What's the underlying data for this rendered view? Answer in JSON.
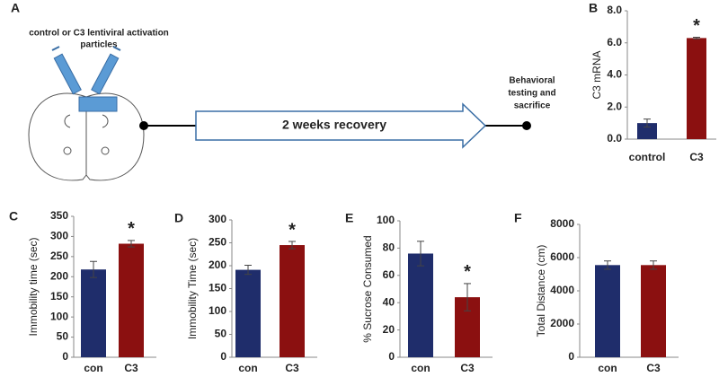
{
  "diagram": {
    "panel": "A",
    "caption": [
      "control  or C3 lentiviral activation",
      "particles"
    ],
    "arrow_label": "2 weeks recovery",
    "endpoint_label": [
      "Behavioral",
      "testing and",
      "sacrifice"
    ]
  },
  "chart_data": [
    {
      "type": "bar",
      "panel": "B",
      "ylabel": "C3 mRNA",
      "categories": [
        "control",
        "C3"
      ],
      "values": [
        1.0,
        6.3
      ],
      "errors": [
        0.25,
        0.05
      ],
      "colors": [
        "#1f2d6b",
        "#8b1010"
      ],
      "annotations": [
        null,
        "*"
      ],
      "ylim": [
        0,
        8
      ],
      "yticks": [
        {
          "value": 0,
          "label": "0.0"
        },
        {
          "value": 2,
          "label": "2.0"
        },
        {
          "value": 4,
          "label": "4.0"
        },
        {
          "value": 6,
          "label": "6.0"
        },
        {
          "value": 8,
          "label": "8.0"
        }
      ]
    },
    {
      "type": "bar",
      "panel": "C",
      "ylabel": "Immobility time (sec)",
      "categories": [
        "con",
        "C3"
      ],
      "values": [
        218,
        282
      ],
      "errors": [
        20,
        8
      ],
      "colors": [
        "#1f2d6b",
        "#8b1010"
      ],
      "annotations": [
        null,
        "*"
      ],
      "ylim": [
        0,
        350
      ],
      "yticks": [
        0,
        50,
        100,
        150,
        200,
        250,
        300,
        350
      ]
    },
    {
      "type": "bar",
      "panel": "D",
      "ylabel": "Immobility Time (sec)",
      "categories": [
        "con",
        "C3"
      ],
      "values": [
        191,
        245
      ],
      "errors": [
        10,
        8
      ],
      "colors": [
        "#1f2d6b",
        "#8b1010"
      ],
      "annotations": [
        null,
        "*"
      ],
      "ylim": [
        0,
        300
      ],
      "yticks": [
        0,
        50,
        100,
        150,
        200,
        250,
        300
      ]
    },
    {
      "type": "bar",
      "panel": "E",
      "ylabel": "% Sucrose Consumed",
      "categories": [
        "con",
        "C3"
      ],
      "values": [
        76,
        44
      ],
      "errors": [
        9,
        10
      ],
      "colors": [
        "#1f2d6b",
        "#8b1010"
      ],
      "annotations": [
        null,
        "*"
      ],
      "ylim": [
        0,
        100
      ],
      "yticks": [
        0,
        20,
        40,
        60,
        80,
        100
      ]
    },
    {
      "type": "bar",
      "panel": "F",
      "ylabel": "Total Distance (cm)",
      "categories": [
        "con",
        "C3"
      ],
      "values": [
        5550,
        5550
      ],
      "errors": [
        250,
        250
      ],
      "colors": [
        "#1f2d6b",
        "#8b1010"
      ],
      "annotations": [
        null,
        null
      ],
      "ylim": [
        0,
        8000
      ],
      "yticks": [
        0,
        2000,
        4000,
        6000,
        8000
      ]
    }
  ]
}
